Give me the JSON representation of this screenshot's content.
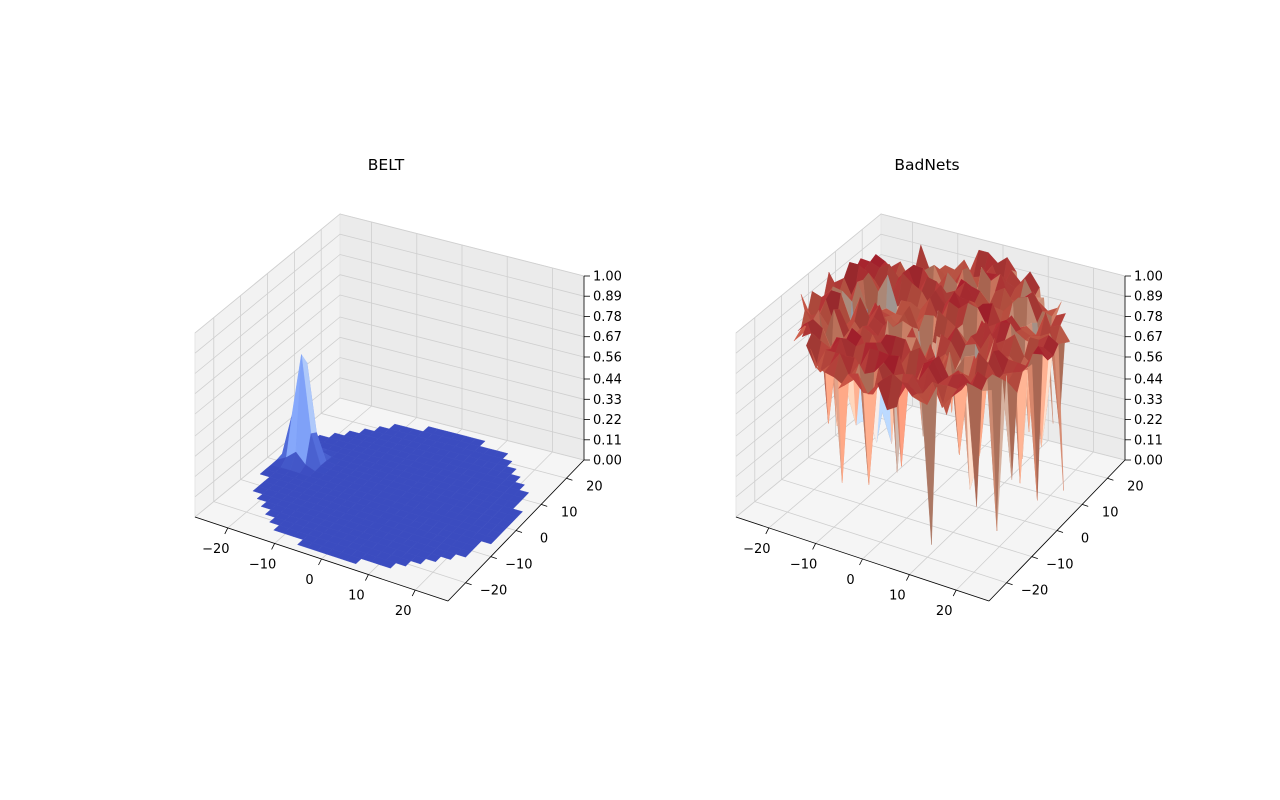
{
  "chart_data": [
    {
      "type": "surface3d",
      "title": "BELT",
      "colormap": "coolwarm",
      "xlim": [
        -27,
        27
      ],
      "ylim": [
        -27,
        27
      ],
      "zlim": [
        0,
        1
      ],
      "x_ticks": [
        -20,
        -10,
        0,
        10,
        20
      ],
      "y_ticks": [
        -20,
        -10,
        0,
        10,
        20
      ],
      "z_ticks": [
        0.0,
        0.11,
        0.22,
        0.33,
        0.44,
        0.56,
        0.67,
        0.78,
        0.89,
        1.0
      ],
      "x_tick_labels": [
        "−20",
        "−10",
        "0",
        "10",
        "20"
      ],
      "y_tick_labels": [
        "−20",
        "−10",
        "0",
        "10",
        "20"
      ],
      "z_tick_labels": [
        "0.00",
        "0.11",
        "0.22",
        "0.33",
        "0.44",
        "0.56",
        "0.67",
        "0.78",
        "0.89",
        "1.00"
      ],
      "grid": true,
      "surface": {
        "description": "disc of radius ~25 at z=0 with a single sharp spike",
        "disc_radius": 25,
        "base_z": 0.0,
        "spike": {
          "x": -21,
          "y": 3,
          "z": 0.72
        }
      }
    },
    {
      "type": "surface3d",
      "title": "BadNets",
      "colormap": "coolwarm",
      "xlim": [
        -27,
        27
      ],
      "ylim": [
        -27,
        27
      ],
      "zlim": [
        0,
        1
      ],
      "x_ticks": [
        -20,
        -10,
        0,
        10,
        20
      ],
      "y_ticks": [
        -20,
        -10,
        0,
        10,
        20
      ],
      "z_ticks": [
        0.0,
        0.11,
        0.22,
        0.33,
        0.44,
        0.56,
        0.67,
        0.78,
        0.89,
        1.0
      ],
      "x_tick_labels": [
        "−20",
        "−10",
        "0",
        "10",
        "20"
      ],
      "y_tick_labels": [
        "−20",
        "−10",
        "0",
        "10",
        "20"
      ],
      "z_tick_labels": [
        "0.00",
        "0.11",
        "0.22",
        "0.33",
        "0.44",
        "0.56",
        "0.67",
        "0.78",
        "0.89",
        "1.00"
      ],
      "grid": true,
      "surface": {
        "description": "rough plateau near z=0.9 over the disc with scattered downward spikes",
        "disc_radius": 25,
        "mean_z": 0.9,
        "min_z": 0.1,
        "max_z": 1.0
      }
    }
  ]
}
